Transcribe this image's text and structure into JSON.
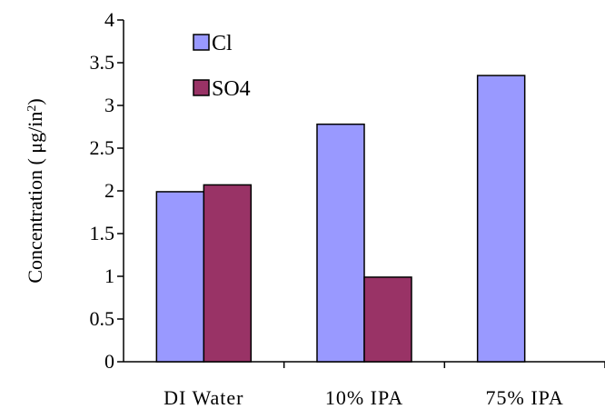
{
  "chart_data": {
    "type": "bar",
    "categories": [
      "DI Water",
      "10% IPA",
      "75% IPA"
    ],
    "series": [
      {
        "name": "Cl",
        "values": [
          1.99,
          2.78,
          3.35
        ],
        "color": "#9999ff"
      },
      {
        "name": "SO4",
        "values": [
          2.07,
          0.99,
          null
        ],
        "color": "#993366"
      }
    ],
    "ylabel": "Concentration ( μg/in²)",
    "ylabel_parts": {
      "main": "Concentration ( μg/in",
      "sup": "2",
      "end": ")"
    },
    "ylim": [
      0,
      4
    ],
    "yticks": [
      0,
      0.5,
      1,
      1.5,
      2,
      2.5,
      3,
      3.5,
      4
    ],
    "ytick_labels": [
      "0",
      "0.5",
      "1",
      "1.5",
      "2",
      "2.5",
      "3",
      "3.5",
      "4"
    ],
    "legend_position": "top-left",
    "grid": false
  }
}
